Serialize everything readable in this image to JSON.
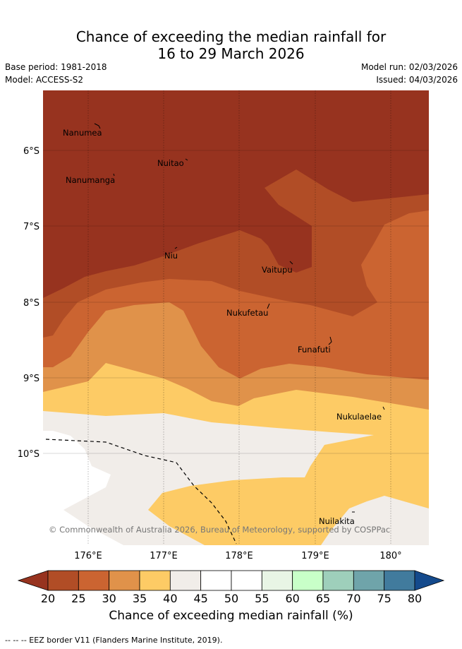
{
  "header": {
    "title_line1": "Chance of exceeding the median rainfall for",
    "title_line2": "16 to 29 March 2026",
    "base_period": "Base period: 1981-2018",
    "model": "Model: ACCESS-S2",
    "model_run": "Model run: 02/03/2026",
    "issued": "Issued: 04/03/2026"
  },
  "map": {
    "lat_labels": [
      "6°S",
      "7°S",
      "8°S",
      "9°S",
      "10°S"
    ],
    "lon_labels": [
      "176°E",
      "177°E",
      "178°E",
      "179°E",
      "180°"
    ],
    "places": [
      {
        "id": "nanumea",
        "name": "Nanumea"
      },
      {
        "id": "nuitao",
        "name": "Nuitao"
      },
      {
        "id": "nanumanga",
        "name": "Nanumanga"
      },
      {
        "id": "niu",
        "name": "Niu"
      },
      {
        "id": "vaitupu",
        "name": "Vaitupu"
      },
      {
        "id": "nukufetau",
        "name": "Nukufetau"
      },
      {
        "id": "funafuti",
        "name": "Funafuti"
      },
      {
        "id": "nukulaelae",
        "name": "Nukulaelae"
      },
      {
        "id": "nuilakita",
        "name": "Nuilakita"
      }
    ],
    "copyright": "© Commonwealth of Australia 2026, Bureau of Meteorology, supported by COSPPac"
  },
  "colorbar": {
    "ticks": [
      "20",
      "25",
      "30",
      "35",
      "40",
      "45",
      "50",
      "55",
      "60",
      "65",
      "70",
      "75",
      "80"
    ],
    "colors": {
      "lt20": "#97331f",
      "c20_25": "#b14d26",
      "c25_30": "#cb6431",
      "c30_35": "#e0924a",
      "c35_40": "#fdcb65",
      "c40_45": "#f1ede9",
      "c45_50": "#ffffff",
      "c50_55": "#ffffff",
      "c55_60": "#e8f5e5",
      "c60_65": "#c8ffc8",
      "c65_70": "#9ecfbb",
      "c70_75": "#6fa4aa",
      "c75_80": "#417b9d",
      "gt80": "#144a8c"
    },
    "title": "Chance of exceeding median rainfall (%)"
  },
  "legend": {
    "text": "-- -- -- EEZ border V11 (Flanders Marine Institute, 2019)."
  }
}
